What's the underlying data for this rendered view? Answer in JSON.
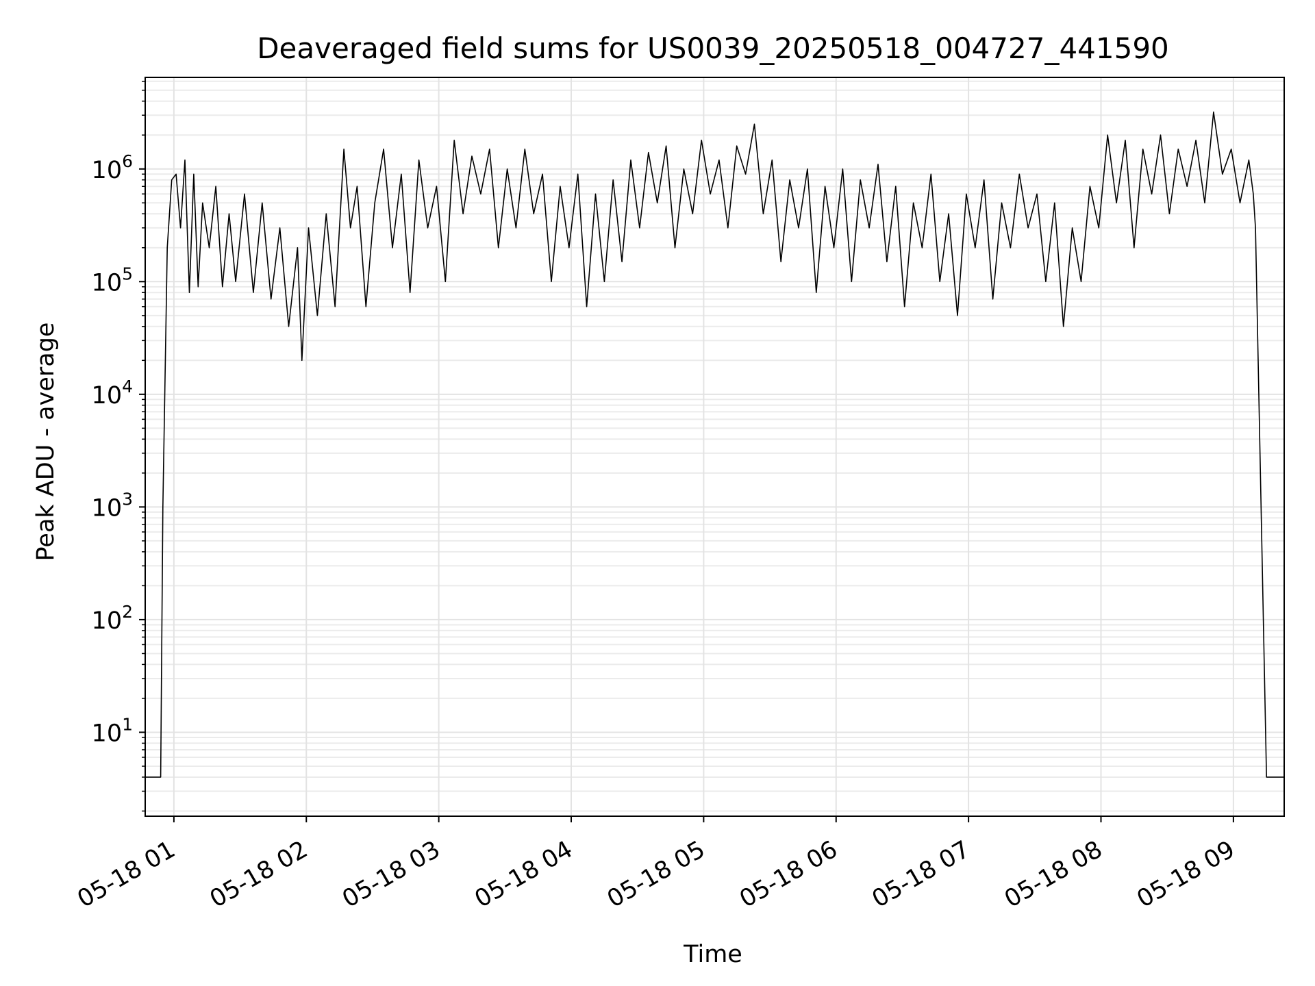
{
  "chart_data": {
    "type": "line",
    "title": "Deaveraged field sums for US0039_20250518_004727_441590",
    "xlabel": "Time",
    "ylabel": "Peak ADU - average",
    "yscale": "log",
    "ylim": [
      1.8,
      6500000
    ],
    "xlim": [
      "2025-05-18T00:47:00",
      "2025-05-18T09:23:00"
    ],
    "grid": true,
    "x_tick_labels": [
      "05-18 01",
      "05-18 02",
      "05-18 03",
      "05-18 04",
      "05-18 05",
      "05-18 06",
      "05-18 07",
      "05-18 08",
      "05-18 09"
    ],
    "x_tick_values": [
      "2025-05-18T01:00:00",
      "2025-05-18T02:00:00",
      "2025-05-18T03:00:00",
      "2025-05-18T04:00:00",
      "2025-05-18T05:00:00",
      "2025-05-18T06:00:00",
      "2025-05-18T07:00:00",
      "2025-05-18T08:00:00",
      "2025-05-18T09:00:00"
    ],
    "y_tick_labels": [
      {
        "base": "10",
        "exp": "1",
        "value": 10
      },
      {
        "base": "10",
        "exp": "2",
        "value": 100
      },
      {
        "base": "10",
        "exp": "3",
        "value": 1000
      },
      {
        "base": "10",
        "exp": "4",
        "value": 10000
      },
      {
        "base": "10",
        "exp": "5",
        "value": 100000
      },
      {
        "base": "10",
        "exp": "6",
        "value": 1000000
      }
    ],
    "series": [
      {
        "color": "#000000",
        "x": [
          "2025-05-18T00:47:00",
          "2025-05-18T00:54:00",
          "2025-05-18T00:55:00",
          "2025-05-18T00:57:00",
          "2025-05-18T00:59:00",
          "2025-05-18T01:01:00",
          "2025-05-18T01:03:00",
          "2025-05-18T01:05:00",
          "2025-05-18T01:07:00",
          "2025-05-18T01:09:00",
          "2025-05-18T01:11:00",
          "2025-05-18T01:13:00",
          "2025-05-18T01:16:00",
          "2025-05-18T01:19:00",
          "2025-05-18T01:22:00",
          "2025-05-18T01:25:00",
          "2025-05-18T01:28:00",
          "2025-05-18T01:32:00",
          "2025-05-18T01:36:00",
          "2025-05-18T01:40:00",
          "2025-05-18T01:44:00",
          "2025-05-18T01:48:00",
          "2025-05-18T01:52:00",
          "2025-05-18T01:56:00",
          "2025-05-18T01:58:00",
          "2025-05-18T02:01:00",
          "2025-05-18T02:05:00",
          "2025-05-18T02:09:00",
          "2025-05-18T02:13:00",
          "2025-05-18T02:17:00",
          "2025-05-18T02:20:00",
          "2025-05-18T02:23:00",
          "2025-05-18T02:27:00",
          "2025-05-18T02:31:00",
          "2025-05-18T02:35:00",
          "2025-05-18T02:39:00",
          "2025-05-18T02:43:00",
          "2025-05-18T02:47:00",
          "2025-05-18T02:51:00",
          "2025-05-18T02:55:00",
          "2025-05-18T02:59:00",
          "2025-05-18T03:03:00",
          "2025-05-18T03:07:00",
          "2025-05-18T03:11:00",
          "2025-05-18T03:15:00",
          "2025-05-18T03:19:00",
          "2025-05-18T03:23:00",
          "2025-05-18T03:27:00",
          "2025-05-18T03:31:00",
          "2025-05-18T03:35:00",
          "2025-05-18T03:39:00",
          "2025-05-18T03:43:00",
          "2025-05-18T03:47:00",
          "2025-05-18T03:51:00",
          "2025-05-18T03:55:00",
          "2025-05-18T03:59:00",
          "2025-05-18T04:03:00",
          "2025-05-18T04:07:00",
          "2025-05-18T04:11:00",
          "2025-05-18T04:15:00",
          "2025-05-18T04:19:00",
          "2025-05-18T04:23:00",
          "2025-05-18T04:27:00",
          "2025-05-18T04:31:00",
          "2025-05-18T04:35:00",
          "2025-05-18T04:39:00",
          "2025-05-18T04:43:00",
          "2025-05-18T04:47:00",
          "2025-05-18T04:51:00",
          "2025-05-18T04:55:00",
          "2025-05-18T04:59:00",
          "2025-05-18T05:03:00",
          "2025-05-18T05:07:00",
          "2025-05-18T05:11:00",
          "2025-05-18T05:15:00",
          "2025-05-18T05:19:00",
          "2025-05-18T05:23:00",
          "2025-05-18T05:27:00",
          "2025-05-18T05:31:00",
          "2025-05-18T05:35:00",
          "2025-05-18T05:39:00",
          "2025-05-18T05:43:00",
          "2025-05-18T05:47:00",
          "2025-05-18T05:51:00",
          "2025-05-18T05:55:00",
          "2025-05-18T05:59:00",
          "2025-05-18T06:03:00",
          "2025-05-18T06:07:00",
          "2025-05-18T06:11:00",
          "2025-05-18T06:15:00",
          "2025-05-18T06:19:00",
          "2025-05-18T06:23:00",
          "2025-05-18T06:27:00",
          "2025-05-18T06:31:00",
          "2025-05-18T06:35:00",
          "2025-05-18T06:39:00",
          "2025-05-18T06:43:00",
          "2025-05-18T06:47:00",
          "2025-05-18T06:51:00",
          "2025-05-18T06:55:00",
          "2025-05-18T06:59:00",
          "2025-05-18T07:03:00",
          "2025-05-18T07:07:00",
          "2025-05-18T07:11:00",
          "2025-05-18T07:15:00",
          "2025-05-18T07:19:00",
          "2025-05-18T07:23:00",
          "2025-05-18T07:27:00",
          "2025-05-18T07:31:00",
          "2025-05-18T07:35:00",
          "2025-05-18T07:39:00",
          "2025-05-18T07:43:00",
          "2025-05-18T07:47:00",
          "2025-05-18T07:51:00",
          "2025-05-18T07:55:00",
          "2025-05-18T07:59:00",
          "2025-05-18T08:03:00",
          "2025-05-18T08:07:00",
          "2025-05-18T08:11:00",
          "2025-05-18T08:15:00",
          "2025-05-18T08:19:00",
          "2025-05-18T08:23:00",
          "2025-05-18T08:27:00",
          "2025-05-18T08:31:00",
          "2025-05-18T08:35:00",
          "2025-05-18T08:39:00",
          "2025-05-18T08:43:00",
          "2025-05-18T08:47:00",
          "2025-05-18T08:51:00",
          "2025-05-18T08:55:00",
          "2025-05-18T08:59:00",
          "2025-05-18T09:03:00",
          "2025-05-18T09:07:00",
          "2025-05-18T09:09:00",
          "2025-05-18T09:10:00",
          "2025-05-18T09:15:00",
          "2025-05-18T09:23:00"
        ],
        "y": [
          4,
          4,
          1000,
          200000,
          800000,
          900000,
          300000,
          1200000,
          80000,
          900000,
          90000,
          500000,
          200000,
          700000,
          90000,
          400000,
          100000,
          600000,
          80000,
          500000,
          70000,
          300000,
          40000,
          200000,
          20000,
          300000,
          50000,
          400000,
          60000,
          1500000,
          300000,
          700000,
          60000,
          500000,
          1500000,
          200000,
          900000,
          80000,
          1200000,
          300000,
          700000,
          100000,
          1800000,
          400000,
          1300000,
          600000,
          1500000,
          200000,
          1000000,
          300000,
          1500000,
          400000,
          900000,
          100000,
          700000,
          200000,
          900000,
          60000,
          600000,
          100000,
          800000,
          150000,
          1200000,
          300000,
          1400000,
          500000,
          1600000,
          200000,
          1000000,
          400000,
          1800000,
          600000,
          1200000,
          300000,
          1600000,
          900000,
          2500000,
          400000,
          1200000,
          150000,
          800000,
          300000,
          1000000,
          80000,
          700000,
          200000,
          1000000,
          100000,
          800000,
          300000,
          1100000,
          150000,
          700000,
          60000,
          500000,
          200000,
          900000,
          100000,
          400000,
          50000,
          600000,
          200000,
          800000,
          70000,
          500000,
          200000,
          900000,
          300000,
          600000,
          100000,
          500000,
          40000,
          300000,
          100000,
          700000,
          300000,
          2000000,
          500000,
          1800000,
          200000,
          1500000,
          600000,
          2000000,
          400000,
          1500000,
          700000,
          1800000,
          500000,
          3200000,
          900000,
          1500000,
          500000,
          1200000,
          600000,
          300000,
          4,
          4
        ]
      }
    ]
  }
}
